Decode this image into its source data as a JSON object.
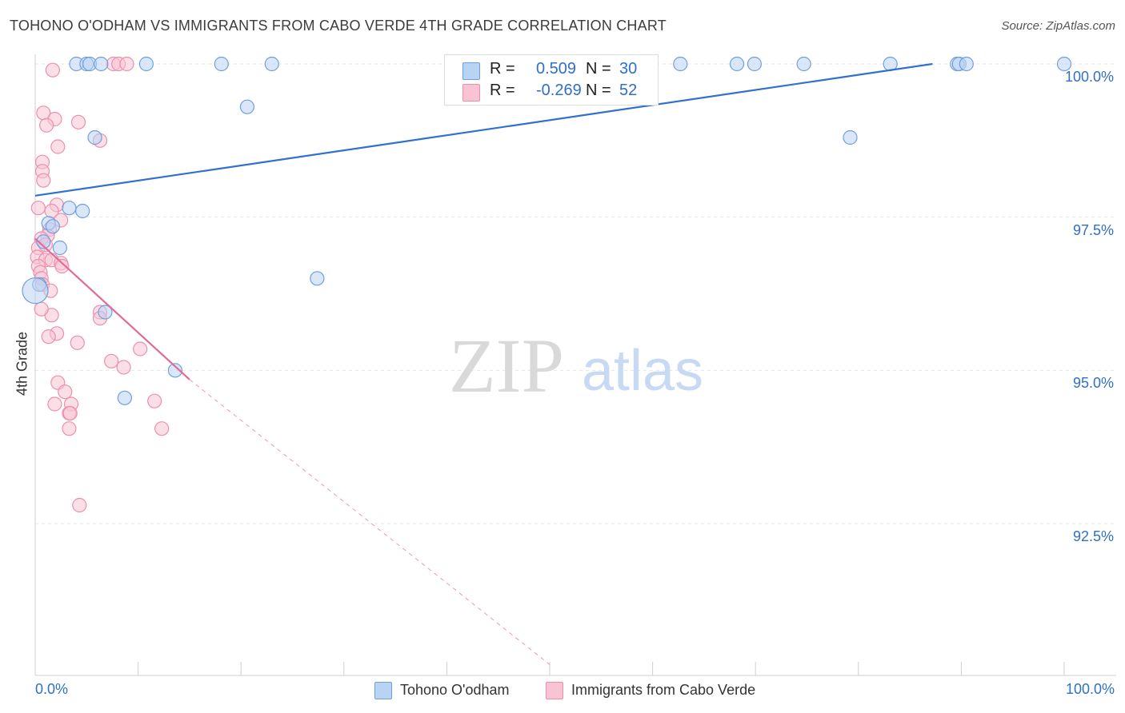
{
  "title": "TOHONO O'ODHAM VS IMMIGRANTS FROM CABO VERDE 4TH GRADE CORRELATION CHART",
  "source": "Source: ZipAtlas.com",
  "watermark": {
    "zip": "ZIP",
    "atlas": "atlas"
  },
  "legend": {
    "series1": {
      "r_label": "R = ",
      "r_value": "0.509",
      "n_label": "N = ",
      "n_value": "30"
    },
    "series2": {
      "r_label": "R = ",
      "r_value": "-0.269",
      "n_label": "N = ",
      "n_value": "52"
    }
  },
  "colors": {
    "blue_fill": "#b9d3f4",
    "blue_stroke": "#6f9fe0",
    "blue_line": "#3070d0",
    "pink_fill": "#f8c4d4",
    "pink_stroke": "#ec8fae",
    "pink_line": "#e46a96",
    "grid": "#e6e6e6",
    "axis_text": "#2f6fc7"
  },
  "chart_data": {
    "type": "scatter",
    "ylabel": "4th Grade",
    "xlabel": "",
    "x_tick_labels": [
      "0.0%",
      "100.0%"
    ],
    "y_tick_labels": [
      "100.0%",
      "97.5%",
      "95.0%",
      "92.5%"
    ],
    "y_ticks": [
      100.0,
      97.5,
      95.0,
      92.5
    ],
    "xlim": [
      0,
      100
    ],
    "ylim": [
      90.2,
      100.35
    ],
    "grid": true,
    "legend_position": "top-center",
    "series": [
      {
        "name": "Tohono O'odham",
        "color": "blue",
        "trend": {
          "x1": 0,
          "y1": 97.85,
          "x2": 87.2,
          "y2": 100.0,
          "dashed_to": null
        },
        "points": [
          [
            4.0,
            100.0
          ],
          [
            5.0,
            100.0
          ],
          [
            5.3,
            100.0
          ],
          [
            6.4,
            100.0
          ],
          [
            10.8,
            100.0
          ],
          [
            18.1,
            100.0
          ],
          [
            23.0,
            100.0
          ],
          [
            62.7,
            100.0
          ],
          [
            68.2,
            100.0
          ],
          [
            69.9,
            100.0
          ],
          [
            74.7,
            100.0
          ],
          [
            83.1,
            100.0
          ],
          [
            89.6,
            100.0
          ],
          [
            89.8,
            100.0
          ],
          [
            90.5,
            100.0
          ],
          [
            100.0,
            100.0
          ],
          [
            20.6,
            99.3
          ],
          [
            5.8,
            98.8
          ],
          [
            79.2,
            98.8
          ],
          [
            3.3,
            97.65
          ],
          [
            4.6,
            97.6
          ],
          [
            1.3,
            97.4
          ],
          [
            1.7,
            97.35
          ],
          [
            0.8,
            97.1
          ],
          [
            2.4,
            97.0
          ],
          [
            27.4,
            96.5
          ],
          [
            0.4,
            96.4
          ],
          [
            6.8,
            95.95
          ],
          [
            13.6,
            95.0
          ],
          [
            8.7,
            94.55
          ]
        ]
      },
      {
        "name": "Immigrants from Cabo Verde",
        "color": "pink",
        "trend": {
          "x1": 0,
          "y1": 97.15,
          "x2": 15.0,
          "y2": 94.85,
          "dashed_to": [
            50.0,
            90.2
          ]
        },
        "points": [
          [
            1.7,
            99.9
          ],
          [
            7.6,
            100.0
          ],
          [
            8.1,
            100.0
          ],
          [
            8.9,
            100.0
          ],
          [
            0.8,
            99.2
          ],
          [
            1.9,
            99.1
          ],
          [
            4.2,
            99.05
          ],
          [
            1.1,
            99.0
          ],
          [
            6.3,
            98.75
          ],
          [
            2.2,
            98.65
          ],
          [
            0.7,
            98.4
          ],
          [
            0.7,
            98.25
          ],
          [
            0.8,
            98.1
          ],
          [
            2.1,
            97.7
          ],
          [
            0.3,
            97.65
          ],
          [
            1.6,
            97.6
          ],
          [
            2.5,
            97.45
          ],
          [
            1.4,
            97.3
          ],
          [
            1.2,
            97.2
          ],
          [
            0.6,
            97.15
          ],
          [
            0.3,
            97.0
          ],
          [
            0.2,
            96.85
          ],
          [
            1.0,
            96.8
          ],
          [
            1.6,
            96.8
          ],
          [
            0.3,
            96.7
          ],
          [
            2.5,
            96.75
          ],
          [
            2.6,
            96.7
          ],
          [
            0.5,
            96.6
          ],
          [
            0.6,
            96.5
          ],
          [
            0.7,
            96.4
          ],
          [
            1.5,
            96.3
          ],
          [
            6.3,
            95.95
          ],
          [
            6.3,
            95.85
          ],
          [
            1.6,
            95.9
          ],
          [
            2.1,
            95.6
          ],
          [
            1.3,
            95.55
          ],
          [
            4.1,
            95.45
          ],
          [
            10.2,
            95.35
          ],
          [
            7.4,
            95.15
          ],
          [
            8.6,
            95.05
          ],
          [
            2.2,
            94.8
          ],
          [
            2.9,
            94.65
          ],
          [
            1.9,
            94.45
          ],
          [
            3.5,
            94.45
          ],
          [
            11.6,
            94.5
          ],
          [
            3.3,
            94.3
          ],
          [
            3.4,
            94.3
          ],
          [
            3.3,
            94.05
          ],
          [
            12.3,
            94.05
          ],
          [
            4.3,
            92.8
          ],
          [
            0.6,
            96.0
          ],
          [
            1.0,
            97.05
          ]
        ]
      }
    ]
  }
}
